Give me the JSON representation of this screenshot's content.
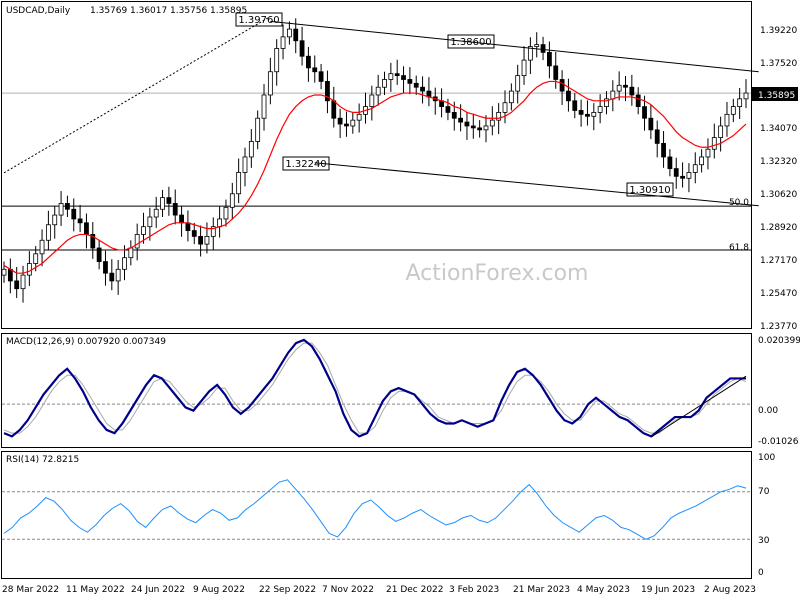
{
  "header": {
    "symbol": "USDCAD,Daily",
    "open": "1.35769",
    "high": "1.36017",
    "low": "1.35756",
    "close": "1.35895"
  },
  "watermark": "ActionForex.com",
  "chart_data": [
    {
      "type": "candlestick",
      "panel": "price",
      "ylim": [
        1.2377,
        1.406
      ],
      "y_ticks": [
        "1.39220",
        "1.37520",
        "1.35895",
        "1.34070",
        "1.32320",
        "1.30620",
        "1.28920",
        "1.27170",
        "1.25470",
        "1.23770"
      ],
      "current_price_label": "1.35895",
      "price_annotations": [
        "1.39760",
        "1.38600",
        "1.32240",
        "1.30910"
      ],
      "fib_levels": [
        {
          "label": "50.0",
          "value": 1.3006
        },
        {
          "label": "61.8",
          "value": 1.278
        }
      ],
      "series": [
        {
          "type": "ohlc",
          "color": "#000000",
          "values": [
            1.268,
            1.262,
            1.258,
            1.265,
            1.271,
            1.276,
            1.283,
            1.291,
            1.296,
            1.302,
            1.299,
            1.294,
            1.292,
            1.286,
            1.279,
            1.272,
            1.266,
            1.262,
            1.268,
            1.274,
            1.279,
            1.286,
            1.29,
            1.295,
            1.299,
            1.305,
            1.302,
            1.296,
            1.292,
            1.288,
            1.285,
            1.281,
            1.285,
            1.29,
            1.294,
            1.3,
            1.307,
            1.318,
            1.326,
            1.334,
            1.346,
            1.358,
            1.37,
            1.382,
            1.388,
            1.392,
            1.386,
            1.378,
            1.372,
            1.37,
            1.365,
            1.355,
            1.346,
            1.343,
            1.342,
            1.345,
            1.348,
            1.352,
            1.358,
            1.362,
            1.366,
            1.369,
            1.368,
            1.366,
            1.364,
            1.362,
            1.36,
            1.357,
            1.355,
            1.352,
            1.349,
            1.346,
            1.344,
            1.342,
            1.341,
            1.34,
            1.342,
            1.345,
            1.349,
            1.354,
            1.36,
            1.368,
            1.376,
            1.383,
            1.384,
            1.38,
            1.373,
            1.366,
            1.36,
            1.355,
            1.35,
            1.348,
            1.347,
            1.349,
            1.352,
            1.356,
            1.36,
            1.363,
            1.362,
            1.358,
            1.352,
            1.346,
            1.34,
            1.333,
            1.326,
            1.32,
            1.316,
            1.315,
            1.318,
            1.322,
            1.326,
            1.33,
            1.336,
            1.342,
            1.348,
            1.352,
            1.356,
            1.359
          ]
        },
        {
          "type": "ma",
          "name": "",
          "color": "#ff0000",
          "values": [
            1.27,
            1.268,
            1.266,
            1.266,
            1.267,
            1.269,
            1.271,
            1.274,
            1.277,
            1.28,
            1.283,
            1.285,
            1.286,
            1.286,
            1.285,
            1.283,
            1.281,
            1.279,
            1.278,
            1.278,
            1.279,
            1.281,
            1.283,
            1.285,
            1.287,
            1.289,
            1.291,
            1.292,
            1.292,
            1.292,
            1.291,
            1.29,
            1.289,
            1.289,
            1.29,
            1.291,
            1.294,
            1.297,
            1.301,
            1.306,
            1.312,
            1.319,
            1.327,
            1.335,
            1.342,
            1.348,
            1.352,
            1.355,
            1.357,
            1.358,
            1.358,
            1.357,
            1.355,
            1.352,
            1.35,
            1.349,
            1.349,
            1.35,
            1.351,
            1.353,
            1.355,
            1.357,
            1.358,
            1.359,
            1.359,
            1.359,
            1.358,
            1.357,
            1.356,
            1.355,
            1.354,
            1.352,
            1.351,
            1.349,
            1.348,
            1.347,
            1.346,
            1.346,
            1.346,
            1.347,
            1.349,
            1.352,
            1.355,
            1.359,
            1.362,
            1.364,
            1.365,
            1.365,
            1.364,
            1.362,
            1.36,
            1.358,
            1.356,
            1.355,
            1.355,
            1.355,
            1.356,
            1.357,
            1.357,
            1.357,
            1.356,
            1.355,
            1.353,
            1.35,
            1.347,
            1.343,
            1.339,
            1.336,
            1.334,
            1.332,
            1.331,
            1.331,
            1.332,
            1.333,
            1.335,
            1.337,
            1.34,
            1.343
          ]
        }
      ],
      "trendlines": [
        {
          "style": "dotted",
          "from": {
            "i": 0,
            "v": 1.3178
          },
          "to": {
            "i": 42,
            "v": 1.3985
          }
        },
        {
          "style": "solid",
          "from": {
            "i": 42,
            "v": 1.396
          },
          "to": {
            "i": 119,
            "v": 1.37
          }
        },
        {
          "style": "solid",
          "from": {
            "i": 49,
            "v": 1.323
          },
          "to": {
            "i": 119,
            "v": 1.3008
          }
        }
      ]
    },
    {
      "type": "line",
      "panel": "macd",
      "title": "MACD(12,26,9) 0.007920 0.007349",
      "ylim": [
        -0.013,
        0.0212
      ],
      "y_ticks": [
        "0.020399",
        "0.00",
        "-0.01026"
      ],
      "series": [
        {
          "name": "MACD",
          "color": "#00008b",
          "values": [
            -0.009,
            -0.01,
            -0.008,
            -0.005,
            -0.001,
            0.003,
            0.006,
            0.009,
            0.011,
            0.008,
            0.004,
            -0.001,
            -0.005,
            -0.008,
            -0.009,
            -0.006,
            -0.002,
            0.002,
            0.006,
            0.009,
            0.008,
            0.005,
            0.002,
            -0.001,
            -0.002,
            0.001,
            0.004,
            0.006,
            0.003,
            -0.001,
            -0.003,
            -0.001,
            0.002,
            0.005,
            0.008,
            0.012,
            0.016,
            0.019,
            0.02,
            0.018,
            0.014,
            0.009,
            0.004,
            -0.003,
            -0.008,
            -0.01,
            -0.009,
            -0.004,
            0.001,
            0.004,
            0.005,
            0.004,
            0.003,
            0.0,
            -0.003,
            -0.005,
            -0.006,
            -0.006,
            -0.005,
            -0.006,
            -0.007,
            -0.006,
            -0.005,
            0.001,
            0.006,
            0.01,
            0.011,
            0.009,
            0.006,
            0.002,
            -0.002,
            -0.005,
            -0.006,
            -0.004,
            0.0,
            0.002,
            0.0,
            -0.002,
            -0.004,
            -0.005,
            -0.007,
            -0.009,
            -0.01,
            -0.008,
            -0.006,
            -0.004,
            -0.004,
            -0.004,
            -0.002,
            0.002,
            0.004,
            0.006,
            0.008,
            0.008,
            0.008
          ]
        },
        {
          "name": "Signal",
          "color": "#a9a9a9",
          "values": [
            -0.008,
            -0.009,
            -0.009,
            -0.007,
            -0.004,
            0.0,
            0.004,
            0.007,
            0.009,
            0.009,
            0.006,
            0.002,
            -0.002,
            -0.006,
            -0.008,
            -0.008,
            -0.005,
            -0.001,
            0.003,
            0.007,
            0.008,
            0.007,
            0.004,
            0.001,
            -0.001,
            0.0,
            0.002,
            0.005,
            0.005,
            0.001,
            -0.002,
            -0.002,
            0.0,
            0.003,
            0.006,
            0.01,
            0.014,
            0.017,
            0.019,
            0.019,
            0.016,
            0.012,
            0.006,
            0.0,
            -0.005,
            -0.009,
            -0.009,
            -0.007,
            -0.002,
            0.002,
            0.004,
            0.004,
            0.003,
            0.001,
            -0.001,
            -0.004,
            -0.005,
            -0.006,
            -0.005,
            -0.006,
            -0.006,
            -0.006,
            -0.005,
            -0.002,
            0.003,
            0.007,
            0.009,
            0.009,
            0.007,
            0.004,
            0.0,
            -0.003,
            -0.005,
            -0.005,
            -0.002,
            0.001,
            0.001,
            -0.001,
            -0.003,
            -0.004,
            -0.006,
            -0.008,
            -0.009,
            -0.009,
            -0.007,
            -0.005,
            -0.004,
            -0.004,
            -0.003,
            0.0,
            0.003,
            0.005,
            0.007,
            0.008,
            0.007
          ]
        }
      ],
      "trendlines": [
        {
          "style": "solid",
          "from": {
            "i": 82,
            "v": -0.0102
          },
          "to": {
            "i": 94,
            "v": 0.0038
          }
        }
      ]
    },
    {
      "type": "line",
      "panel": "rsi",
      "title": "RSI(14) 72.8215",
      "ylim": [
        0,
        100
      ],
      "y_ticks": [
        "100",
        "70",
        "30",
        "0"
      ],
      "levels": [
        70,
        30
      ],
      "series": [
        {
          "name": "RSI",
          "color": "#1e90ff",
          "values": [
            35,
            40,
            48,
            52,
            58,
            65,
            62,
            55,
            46,
            40,
            36,
            42,
            50,
            56,
            60,
            54,
            45,
            40,
            48,
            55,
            58,
            52,
            47,
            44,
            50,
            55,
            52,
            46,
            48,
            55,
            60,
            66,
            72,
            78,
            80,
            72,
            64,
            55,
            45,
            35,
            32,
            40,
            52,
            60,
            63,
            57,
            50,
            45,
            48,
            52,
            55,
            50,
            46,
            42,
            44,
            48,
            50,
            46,
            44,
            48,
            55,
            62,
            70,
            76,
            68,
            58,
            50,
            44,
            40,
            36,
            42,
            48,
            50,
            46,
            40,
            38,
            34,
            30,
            33,
            40,
            48,
            52,
            55,
            58,
            62,
            66,
            70,
            72,
            75,
            73
          ]
        }
      ]
    }
  ],
  "x_axis": {
    "labels": [
      "28 Mar 2022",
      "11 May 2022",
      "24 Jun 2022",
      "9 Aug 2022",
      "22 Sep 2022",
      "7 Nov 2022",
      "21 Dec 2022",
      "3 Feb 2023",
      "21 Mar 2023",
      "4 May 2023",
      "19 Jun 2023",
      "2 Aug 2023"
    ]
  },
  "colors": {
    "candle": "#000000",
    "ma": "#ff0000",
    "macd": "#00008b",
    "signal": "#a9a9a9",
    "rsi": "#1e90ff",
    "label_bg": "#ffffff"
  }
}
